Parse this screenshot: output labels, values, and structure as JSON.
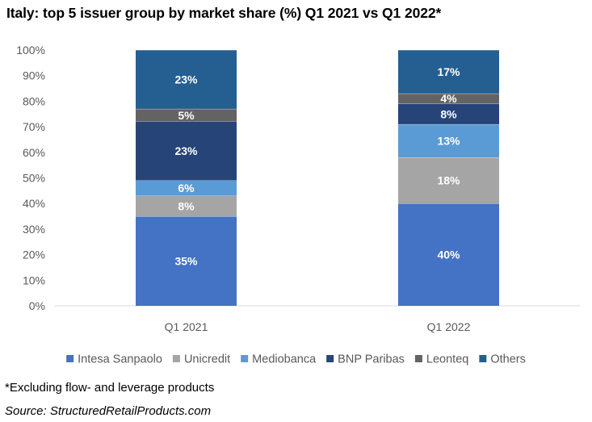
{
  "title": "Italy: top 5 issuer group by market share (%) Q1 2021 vs Q1 2022*",
  "footnote": "*Excluding flow- and leverage products",
  "source": "Source: StructuredRetailProducts.com",
  "chart_data": {
    "type": "bar",
    "stacked": true,
    "categories": [
      "Q1 2021",
      "Q1 2022"
    ],
    "ylim": [
      0,
      100
    ],
    "yticks": [
      "0%",
      "10%",
      "20%",
      "30%",
      "40%",
      "50%",
      "60%",
      "70%",
      "80%",
      "90%",
      "100%"
    ],
    "grid": false,
    "legend_position": "bottom",
    "series": [
      {
        "name": "Intesa Sanpaolo",
        "color": "#4472c4",
        "values": [
          35,
          40
        ],
        "labels": [
          "35%",
          "40%"
        ]
      },
      {
        "name": "Unicredit",
        "color": "#a5a5a5",
        "values": [
          8,
          18
        ],
        "labels": [
          "8%",
          "18%"
        ]
      },
      {
        "name": "Mediobanca",
        "color": "#5b9bd5",
        "values": [
          6,
          13
        ],
        "labels": [
          "6%",
          "13%"
        ]
      },
      {
        "name": "BNP Paribas",
        "color": "#264478",
        "values": [
          23,
          8
        ],
        "labels": [
          "23%",
          "8%"
        ]
      },
      {
        "name": "Leonteq",
        "color": "#636363",
        "values": [
          5,
          4
        ],
        "labels": [
          "5%",
          "4%"
        ]
      },
      {
        "name": "Others",
        "color": "#255e91",
        "values": [
          23,
          17
        ],
        "labels": [
          "23%",
          "17%"
        ]
      }
    ]
  }
}
